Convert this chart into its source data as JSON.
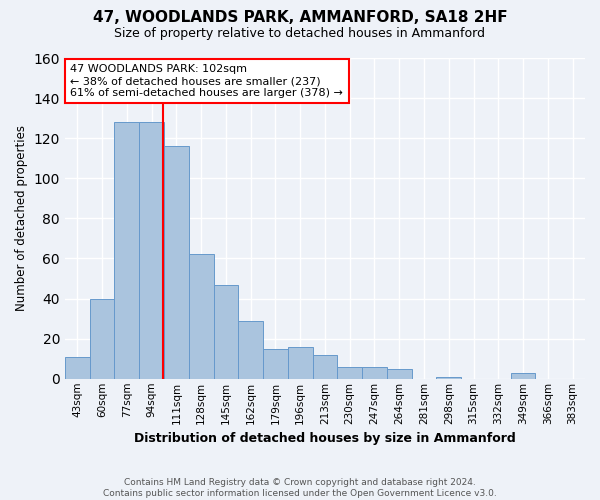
{
  "title": "47, WOODLANDS PARK, AMMANFORD, SA18 2HF",
  "subtitle": "Size of property relative to detached houses in Ammanford",
  "xlabel": "Distribution of detached houses by size in Ammanford",
  "ylabel": "Number of detached properties",
  "footer_line1": "Contains HM Land Registry data © Crown copyright and database right 2024.",
  "footer_line2": "Contains public sector information licensed under the Open Government Licence v3.0.",
  "bar_labels": [
    "43sqm",
    "60sqm",
    "77sqm",
    "94sqm",
    "111sqm",
    "128sqm",
    "145sqm",
    "162sqm",
    "179sqm",
    "196sqm",
    "213sqm",
    "230sqm",
    "247sqm",
    "264sqm",
    "281sqm",
    "298sqm",
    "315sqm",
    "332sqm",
    "349sqm",
    "366sqm",
    "383sqm"
  ],
  "bar_values": [
    11,
    40,
    128,
    128,
    116,
    62,
    47,
    29,
    15,
    16,
    12,
    6,
    6,
    5,
    0,
    1,
    0,
    0,
    3,
    0,
    0
  ],
  "bar_color": "#aac4de",
  "bar_edge_color": "#6699cc",
  "ylim": [
    0,
    160
  ],
  "yticks": [
    0,
    20,
    40,
    60,
    80,
    100,
    120,
    140,
    160
  ],
  "property_label": "47 WOODLANDS PARK: 102sqm",
  "annotation_line1": "← 38% of detached houses are smaller (237)",
  "annotation_line2": "61% of semi-detached houses are larger (378) →",
  "vline_x_index": 3.47,
  "background_color": "#eef2f8",
  "plot_background_color": "#eef2f8",
  "grid_color": "#ffffff"
}
